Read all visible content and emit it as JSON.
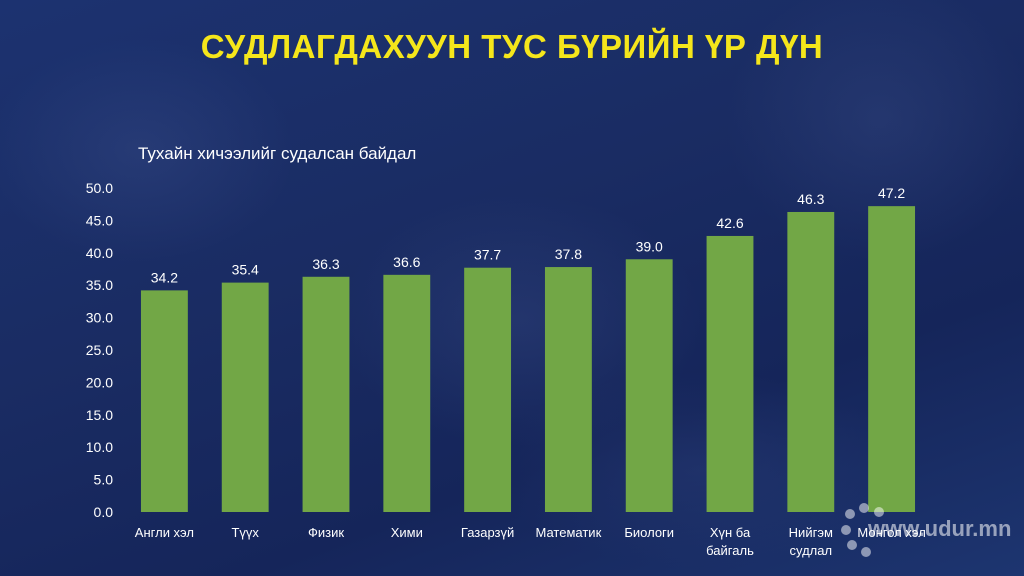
{
  "title": "СУДЛАГДАХУУН ТУС БҮРИЙН ҮР ДҮН",
  "watermark": "www.udur.mn",
  "colors": {
    "bar": "#72a746",
    "title": "#f5e61b",
    "text": "#ffffff"
  },
  "chart_data": {
    "type": "bar",
    "title": "",
    "series_label": "Тухайн хичээлийг судалсан байдал",
    "categories": [
      "Англи хэл",
      "Түүх",
      "Физик",
      "Хими",
      "Газарзүй",
      "Математик",
      "Биологи",
      "Хүн ба байгаль",
      "Нийгэм судлал",
      "Монгол хэл"
    ],
    "category_lines": [
      [
        "Англи хэл"
      ],
      [
        "Түүх"
      ],
      [
        "Физик"
      ],
      [
        "Хими"
      ],
      [
        "Газарзүй"
      ],
      [
        "Математик"
      ],
      [
        "Биологи"
      ],
      [
        "Хүн ба",
        "байгаль"
      ],
      [
        "Нийгэм",
        "судлал"
      ],
      [
        "Монгол хэл"
      ]
    ],
    "values": [
      34.2,
      35.4,
      36.3,
      36.6,
      37.7,
      37.8,
      39.0,
      42.6,
      46.3,
      47.2
    ],
    "value_labels": [
      "34.2",
      "35.4",
      "36.3",
      "36.6",
      "37.7",
      "37.8",
      "39.0",
      "42.6",
      "46.3",
      "47.2"
    ],
    "yticks": [
      "0.0",
      "5.0",
      "10.0",
      "15.0",
      "20.0",
      "25.0",
      "30.0",
      "35.0",
      "40.0",
      "45.0",
      "50.0"
    ],
    "ylim": [
      0,
      50
    ],
    "xlabel": "",
    "ylabel": "",
    "grid": false,
    "legend": "none"
  }
}
